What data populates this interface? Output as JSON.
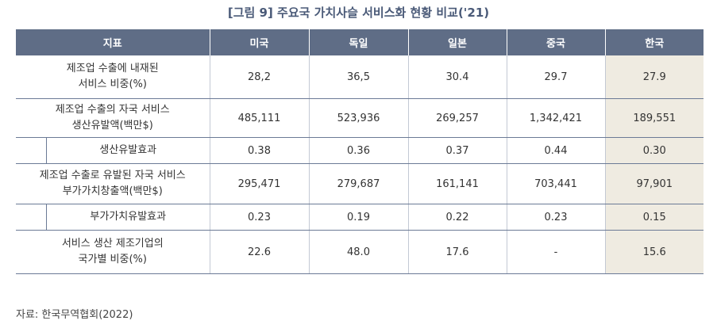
{
  "title": "[그림 9] 주요국 가치사슬 서비스화 현황 비교('21)",
  "table": {
    "headers": [
      "지표",
      "미국",
      "독일",
      "일본",
      "중국",
      "한국"
    ],
    "rows": [
      {
        "label_line1": "제조업 수출에 내재된",
        "label_line2": "서비스 비중(%)",
        "values": [
          "28,2",
          "36,5",
          "30.4",
          "29.7",
          "27.9"
        ]
      },
      {
        "label_line1": "제조업 수출의 자국 서비스",
        "label_line2": "생산유발액(백만$)",
        "values": [
          "485,111",
          "523,936",
          "269,257",
          "1,342,421",
          "189,551"
        ]
      },
      {
        "label_line1": "생산유발효과",
        "label_line2": "",
        "values": [
          "0.38",
          "0.36",
          "0.37",
          "0.44",
          "0.30"
        ]
      },
      {
        "label_line1": "제조업 수출로 유발된 자국 서비스",
        "label_line2": "부가가치창출액(백만$)",
        "values": [
          "295,471",
          "279,687",
          "161,141",
          "703,441",
          "97,901"
        ]
      },
      {
        "label_line1": "부가가치유발효과",
        "label_line2": "",
        "values": [
          "0.23",
          "0.19",
          "0.22",
          "0.23",
          "0.15"
        ]
      },
      {
        "label_line1": "서비스 생산 제조기업의",
        "label_line2": "국가별 비중(%)",
        "values": [
          "22.6",
          "48.0",
          "17.6",
          "-",
          "15.6"
        ]
      }
    ]
  },
  "source": "자료: 한국무역협회(2022)"
}
